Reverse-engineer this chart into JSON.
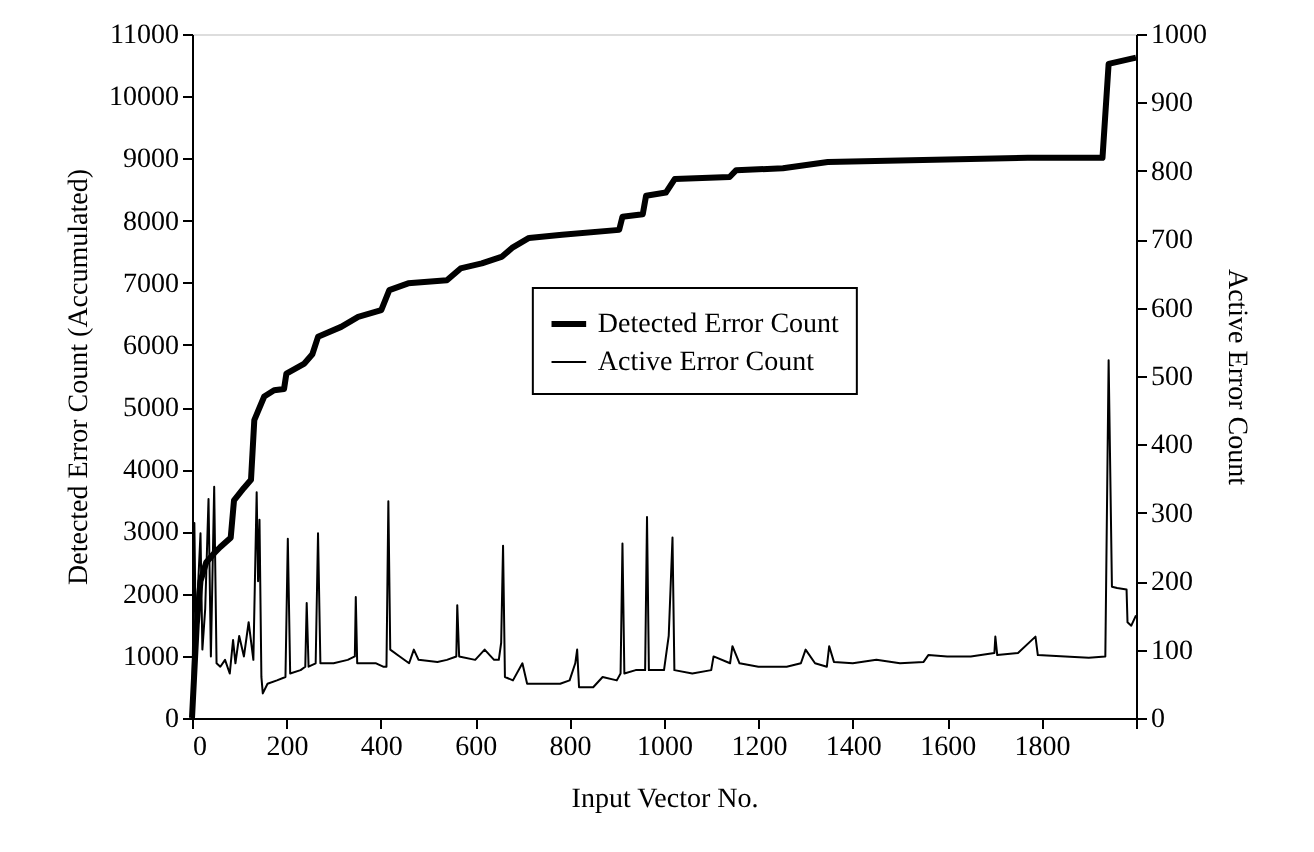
{
  "chart_data": {
    "type": "line",
    "xlabel": "Input Vector No.",
    "ylabel": "Detected Error Count (Accumulated)",
    "y2label": "Active Error Count",
    "xlim": [
      0,
      2000
    ],
    "xticks": [
      0,
      200,
      400,
      600,
      800,
      1000,
      1200,
      1400,
      1600,
      1800,
      {
        "value": 2000,
        "label": null
      }
    ],
    "ylim": [
      0,
      11000
    ],
    "yticks": [
      0,
      1000,
      2000,
      3000,
      4000,
      5000,
      6000,
      7000,
      8000,
      9000,
      10000,
      11000
    ],
    "y2lim": [
      0,
      1000
    ],
    "y2ticks": [
      0,
      100,
      200,
      300,
      400,
      500,
      600,
      700,
      800,
      900,
      1000
    ],
    "grid": false,
    "legend": "right",
    "marker": "none",
    "line_style": "solid",
    "series": [
      {
        "name": "Detected Error Count",
        "color": "#000000",
        "x": [
          0,
          10,
          18,
          30,
          47,
          60,
          82,
          89,
          110,
          125,
          132,
          153,
          174,
          195,
          200,
          238,
          255,
          267,
          316,
          352,
          401,
          418,
          458,
          540,
          569,
          614,
          657,
          678,
          714,
          784,
          905,
          912,
          955,
          962,
          1004,
          1023,
          1139,
          1153,
          1252,
          1347,
          1771,
          1929,
          1942,
          2000
        ],
        "values": [
          0,
          1500,
          2200,
          2500,
          2650,
          2750,
          2900,
          3500,
          3700,
          3830,
          4790,
          5170,
          5270,
          5290,
          5540,
          5700,
          5850,
          6130,
          6290,
          6450,
          6560,
          6880,
          6990,
          7040,
          7230,
          7310,
          7420,
          7560,
          7720,
          7770,
          7850,
          8060,
          8100,
          8400,
          8450,
          8670,
          8700,
          8810,
          8840,
          8940,
          9010,
          9010,
          10520,
          10620
        ]
      },
      {
        "name": "Active Error Count",
        "color": "#000000",
        "axis": "y2",
        "x": [
          0,
          3,
          5,
          8,
          12,
          18,
          22,
          28,
          35,
          40,
          47,
          52,
          60,
          70,
          80,
          87,
          92,
          100,
          110,
          120,
          130,
          137,
          140,
          143,
          147,
          150,
          160,
          180,
          198,
          203,
          208,
          230,
          240,
          243,
          247,
          262,
          267,
          272,
          300,
          330,
          345,
          347,
          350,
          390,
          405,
          412,
          416,
          420,
          440,
          460,
          470,
          480,
          520,
          540,
          560,
          562,
          566,
          600,
          620,
          640,
          650,
          655,
          659,
          663,
          680,
          700,
          710,
          740,
          780,
          800,
          812,
          816,
          820,
          850,
          870,
          900,
          908,
          912,
          916,
          940,
          960,
          964,
          968,
          1000,
          1010,
          1018,
          1022,
          1060,
          1100,
          1105,
          1140,
          1145,
          1160,
          1200,
          1260,
          1290,
          1300,
          1320,
          1345,
          1350,
          1360,
          1400,
          1450,
          1500,
          1550,
          1560,
          1600,
          1650,
          1700,
          1702,
          1706,
          1750,
          1787,
          1792,
          1850,
          1900,
          1935,
          1942,
          1949,
          1960,
          1980,
          1982,
          1990,
          2000
        ],
        "values": [
          0,
          150,
          285,
          120,
          180,
          270,
          100,
          160,
          320,
          90,
          338,
          80,
          75,
          85,
          65,
          114,
          80,
          120,
          90,
          140,
          85,
          330,
          200,
          290,
          60,
          36,
          50,
          55,
          60,
          262,
          65,
          70,
          75,
          168,
          75,
          80,
          270,
          80,
          80,
          85,
          90,
          177,
          80,
          80,
          75,
          75,
          317,
          100,
          90,
          80,
          100,
          85,
          82,
          85,
          90,
          165,
          90,
          85,
          100,
          85,
          85,
          110,
          252,
          60,
          55,
          80,
          50,
          50,
          50,
          55,
          80,
          100,
          45,
          45,
          60,
          55,
          65,
          255,
          65,
          70,
          70,
          294,
          70,
          70,
          120,
          264,
          70,
          65,
          70,
          90,
          80,
          105,
          80,
          75,
          75,
          80,
          100,
          80,
          75,
          105,
          82,
          80,
          85,
          80,
          82,
          92,
          90,
          90,
          95,
          119,
          92,
          95,
          119,
          92,
          90,
          88,
          90,
          523,
          192,
          190,
          188,
          140,
          135,
          150
        ]
      }
    ]
  }
}
